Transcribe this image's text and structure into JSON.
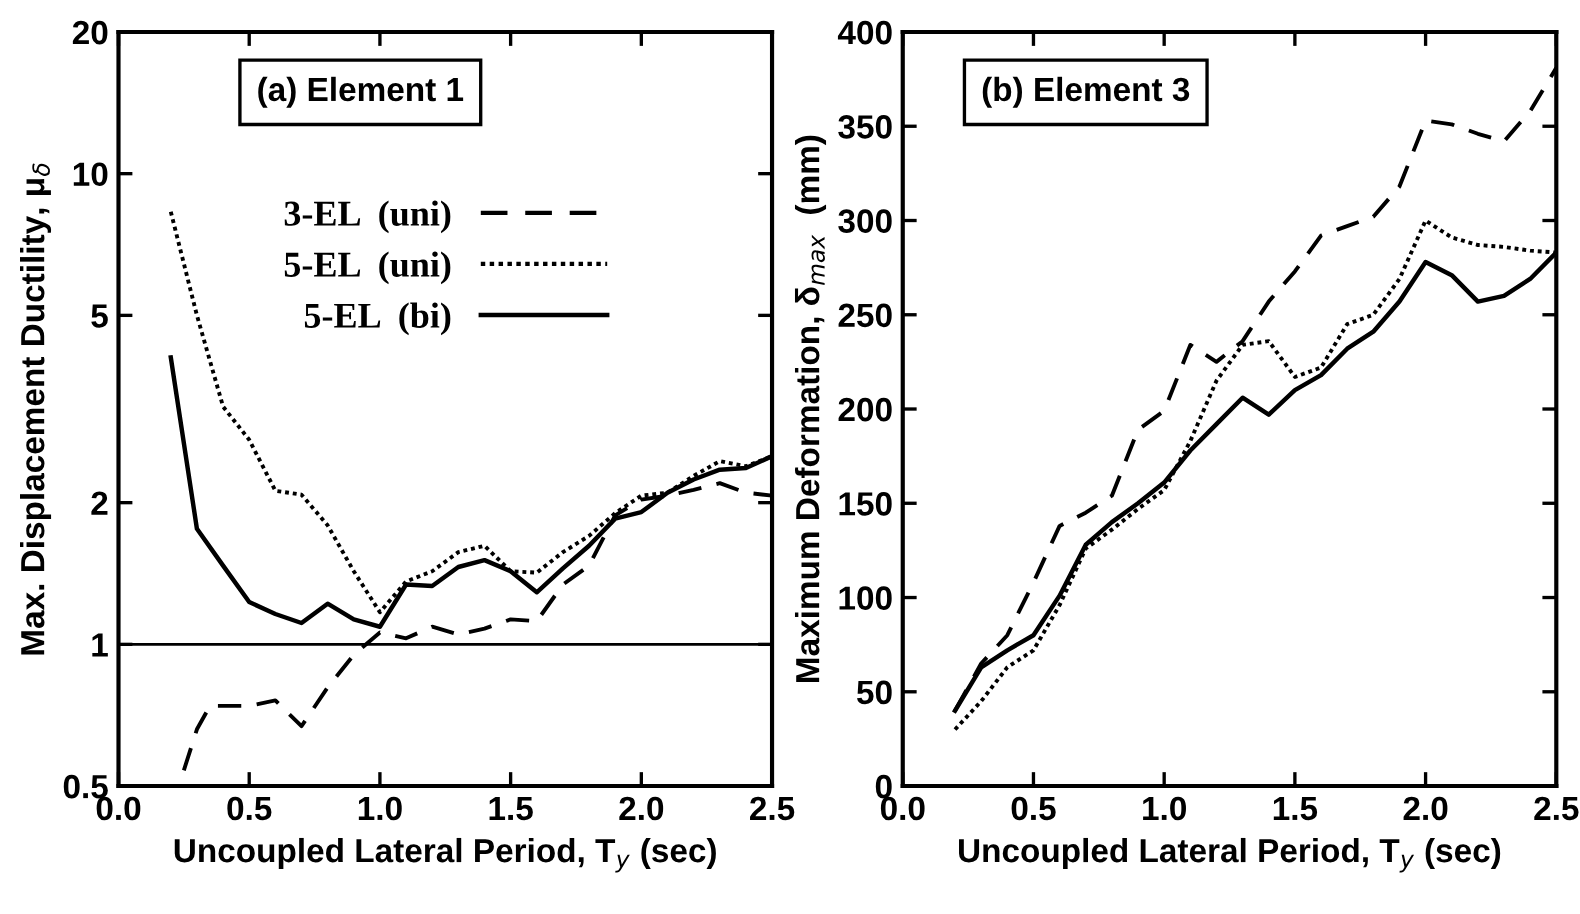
{
  "chart_data": [
    {
      "type": "line",
      "title": "(a) Element 1",
      "xlabel": "Uncoupled Lateral Period, T$_{y}$ (sec)",
      "ylabel": "Max. Displacement Ductility, μ$_{δ}$",
      "log": "y",
      "xlim": [
        0,
        2.5
      ],
      "ylim": [
        0.5,
        20
      ],
      "xticks": [
        {
          "value": 0,
          "label": "0.0"
        },
        0.5,
        {
          "value": 1,
          "label": "1.0"
        },
        1.5,
        {
          "value": 2,
          "label": "2.0"
        },
        2.5
      ],
      "yticks": [
        0.5,
        1,
        2,
        5,
        10,
        20
      ],
      "grid": false,
      "legend": "top",
      "marker": "none",
      "ref_lines": [
        {
          "axis": "y",
          "value": 1,
          "color": "#000000",
          "line_style": "solid"
        }
      ],
      "series": [
        {
          "name": "3-EL  (uni)",
          "color": "#000000",
          "line_style": "dashed",
          "x": [
            0.25,
            0.3,
            0.35,
            0.5,
            0.6,
            0.7,
            0.8,
            0.9,
            1.0,
            1.1,
            1.2,
            1.3,
            1.4,
            1.5,
            1.6,
            1.7,
            1.8,
            1.9,
            2.0,
            2.1,
            2.2,
            2.3,
            2.4,
            2.5
          ],
          "values": [
            0.54,
            0.66,
            0.74,
            0.74,
            0.76,
            0.67,
            0.81,
            0.95,
            1.06,
            1.03,
            1.09,
            1.05,
            1.08,
            1.13,
            1.12,
            1.34,
            1.47,
            1.88,
            2.03,
            2.07,
            2.13,
            2.2,
            2.1,
            2.07
          ]
        },
        {
          "name": "5-EL  (uni)",
          "color": "#000000",
          "line_style": "dotted",
          "x": [
            0.2,
            0.3,
            0.4,
            0.5,
            0.6,
            0.7,
            0.8,
            0.9,
            1.0,
            1.1,
            1.2,
            1.3,
            1.4,
            1.5,
            1.6,
            1.7,
            1.8,
            1.9,
            2.0,
            2.1,
            2.2,
            2.3,
            2.4,
            2.5
          ],
          "values": [
            8.3,
            5.0,
            3.2,
            2.72,
            2.12,
            2.08,
            1.79,
            1.43,
            1.17,
            1.36,
            1.43,
            1.57,
            1.62,
            1.43,
            1.42,
            1.57,
            1.7,
            1.9,
            2.07,
            2.1,
            2.28,
            2.45,
            2.39,
            2.51
          ]
        },
        {
          "name": "5-EL  (bi)",
          "color": "#000000",
          "line_style": "solid",
          "x": [
            0.2,
            0.3,
            0.4,
            0.5,
            0.6,
            0.7,
            0.8,
            0.9,
            1.0,
            1.1,
            1.2,
            1.3,
            1.4,
            1.5,
            1.6,
            1.7,
            1.8,
            1.9,
            2.0,
            2.1,
            2.2,
            2.3,
            2.4,
            2.5
          ],
          "values": [
            4.07,
            1.76,
            1.47,
            1.23,
            1.16,
            1.11,
            1.22,
            1.13,
            1.09,
            1.34,
            1.33,
            1.46,
            1.51,
            1.43,
            1.29,
            1.45,
            1.62,
            1.85,
            1.91,
            2.1,
            2.24,
            2.35,
            2.37,
            2.51
          ]
        }
      ]
    },
    {
      "type": "line",
      "title": "(b) Element 3",
      "xlabel": "Uncoupled Lateral Period, T$_{y}$ (sec)",
      "ylabel": "Maximum Deformation, δ$_{max}$  (mm)",
      "xlim": [
        0,
        2.5
      ],
      "ylim": [
        0,
        400
      ],
      "xticks": [
        {
          "value": 0,
          "label": "0.0"
        },
        0.5,
        {
          "value": 1,
          "label": "1.0"
        },
        1.5,
        {
          "value": 2,
          "label": "2.0"
        },
        2.5
      ],
      "yticks": [
        0,
        50,
        100,
        150,
        200,
        250,
        300,
        350,
        400
      ],
      "grid": false,
      "legend": false,
      "marker": "none",
      "series": [
        {
          "color": "#000000",
          "line_style": "dashed",
          "x": [
            0.2,
            0.3,
            0.4,
            0.5,
            0.6,
            0.7,
            0.8,
            0.9,
            1.0,
            1.1,
            1.2,
            1.3,
            1.4,
            1.5,
            1.6,
            1.7,
            1.8,
            1.9,
            2.0,
            2.1,
            2.2,
            2.3,
            2.4,
            2.5
          ],
          "values": [
            40,
            65,
            80,
            108,
            138,
            145,
            154,
            189,
            199,
            234,
            225,
            236,
            257,
            273,
            292,
            297,
            302,
            318,
            353,
            351,
            346,
            342,
            358,
            381
          ]
        },
        {
          "color": "#000000",
          "line_style": "dotted",
          "x": [
            0.2,
            0.3,
            0.4,
            0.5,
            0.6,
            0.7,
            0.8,
            0.9,
            1.0,
            1.1,
            1.2,
            1.3,
            1.4,
            1.5,
            1.6,
            1.7,
            1.8,
            1.9,
            2.0,
            2.1,
            2.2,
            2.3,
            2.4,
            2.5
          ],
          "values": [
            30,
            45,
            63,
            72,
            96,
            126,
            136,
            147,
            157,
            183,
            215,
            234,
            236,
            217,
            222,
            245,
            250,
            269,
            300,
            291,
            287,
            286,
            284,
            283
          ]
        },
        {
          "color": "#000000",
          "line_style": "solid",
          "x": [
            0.2,
            0.3,
            0.4,
            0.5,
            0.6,
            0.7,
            0.8,
            0.9,
            1.0,
            1.1,
            1.2,
            1.3,
            1.4,
            1.5,
            1.6,
            1.7,
            1.8,
            1.9,
            2.0,
            2.1,
            2.2,
            2.3,
            2.4,
            2.5
          ],
          "values": [
            40,
            63,
            72,
            80,
            101,
            128,
            140,
            150,
            161,
            178,
            192,
            206,
            197,
            210,
            218,
            232,
            241,
            257,
            278,
            271,
            257,
            260,
            269,
            283
          ]
        }
      ]
    }
  ]
}
